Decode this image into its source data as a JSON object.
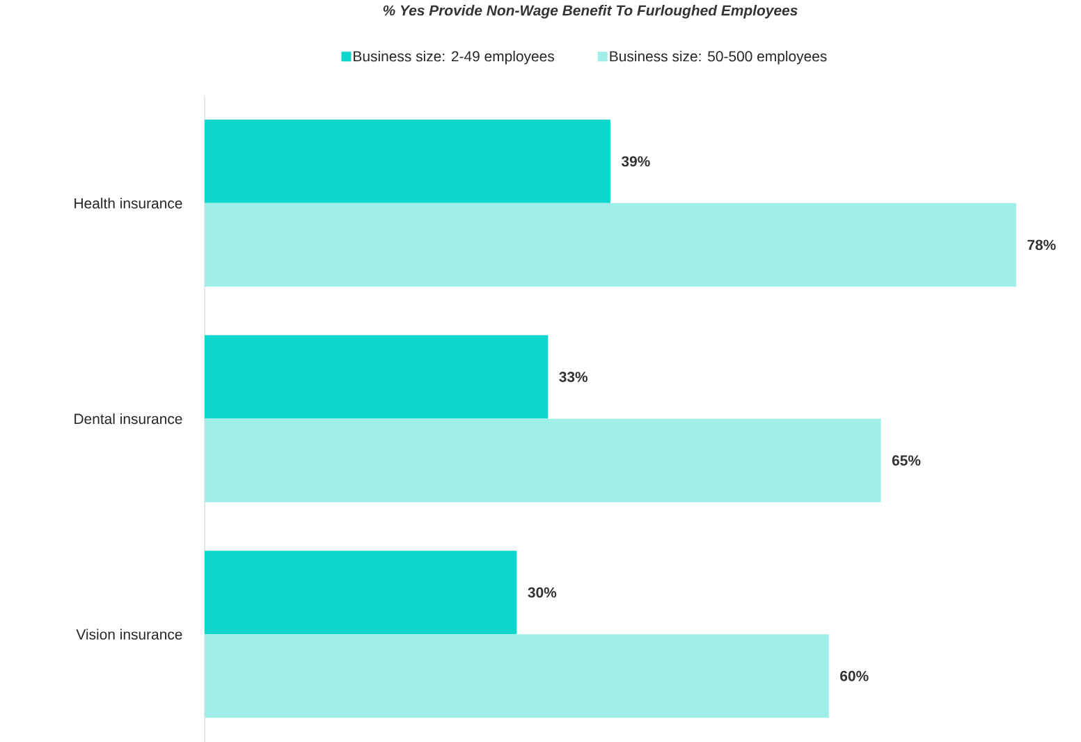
{
  "chart_data": {
    "type": "bar",
    "orientation": "horizontal",
    "title": "*% Yes Provide Non-Wage Benefit To Furloughed Employees*",
    "categories": [
      "Health insurance",
      "Dental insurance",
      "Vision insurance"
    ],
    "series": [
      {
        "name": "Business size: 2-49 employees",
        "color": "#0ed6cc",
        "values": [
          39,
          33,
          30
        ],
        "value_labels": [
          "39%",
          "33%",
          "30%"
        ]
      },
      {
        "name": "Business size: 50-500 employees",
        "color": "#a0eee8",
        "values": [
          78,
          65,
          60
        ],
        "value_labels": [
          "78%",
          "65%",
          "60%"
        ]
      }
    ],
    "legend": "top"
  }
}
